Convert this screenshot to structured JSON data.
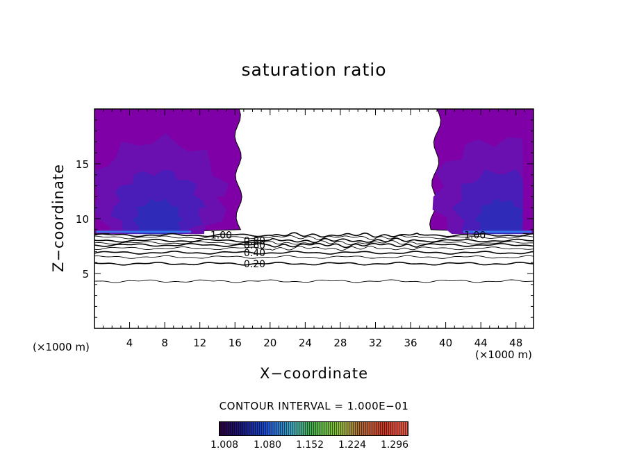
{
  "chart_data": {
    "type": "contour",
    "title": "saturation ratio",
    "xlabel": "X−coordinate",
    "ylabel": "Z−coordinate",
    "x_unit": "(×1000 m)",
    "y_unit": "(×1000 m)",
    "xlim": [
      0,
      50
    ],
    "ylim": [
      0,
      20
    ],
    "xticks": [
      4,
      8,
      12,
      16,
      20,
      24,
      28,
      32,
      36,
      40,
      44,
      48
    ],
    "yticks": [
      5,
      10,
      15
    ],
    "contour_interval_text": "CONTOUR INTERVAL = 1.000E−01",
    "contour_levels_labeled": [
      "1.00",
      "0.80",
      "0.60",
      "0.40",
      "0.20"
    ],
    "contour_lines": [
      {
        "level": 1.0,
        "label": "1.00",
        "z": 8.5,
        "label_x": [
          13.2,
          42.1
        ]
      },
      {
        "level": 0.9,
        "label": "",
        "z": 8.3
      },
      {
        "level": 0.8,
        "label": "0.80",
        "z": 8.0,
        "label_x": [
          17.0
        ]
      },
      {
        "level": 0.7,
        "label": "",
        "z": 7.8
      },
      {
        "level": 0.6,
        "label": "0.60",
        "z": 7.6,
        "label_x": [
          17.0
        ]
      },
      {
        "level": 0.5,
        "label": "",
        "z": 7.3
      },
      {
        "level": 0.4,
        "label": "0.40",
        "z": 6.9,
        "label_x": [
          17.0
        ]
      },
      {
        "level": 0.3,
        "label": "",
        "z": 6.5
      },
      {
        "level": 0.2,
        "label": "0.20",
        "z": 5.9,
        "label_x": [
          17.0
        ]
      },
      {
        "level": 0.1,
        "label": "",
        "z": 4.3
      }
    ],
    "supersaturated_regions": [
      {
        "side": "left",
        "x_range": [
          0,
          16.5
        ],
        "z_range": [
          8.6,
          20
        ]
      },
      {
        "side": "right",
        "x_range": [
          38.5,
          50
        ],
        "z_range": [
          8.6,
          20
        ]
      }
    ],
    "colorbar": {
      "tick_labels": [
        "1.008",
        "1.080",
        "1.152",
        "1.224",
        "1.296"
      ],
      "colors": [
        "#2a003a",
        "#1a1a80",
        "#1d4fd0",
        "#40a0c0",
        "#4ab04a",
        "#8ac040",
        "#b06b3a",
        "#c83a2a",
        "#e25b4a"
      ]
    },
    "fill_colors": {
      "base": "#8000a8",
      "mid": "#6a10b0",
      "deep": "#4a1cb8",
      "deeper": "#2f2ab8",
      "bright": "#3a7ef0"
    },
    "grid": false
  }
}
